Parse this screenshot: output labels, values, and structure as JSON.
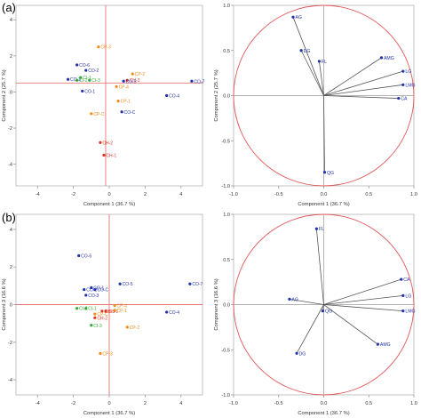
{
  "figure": {
    "panel_labels": [
      "(a)",
      "(b)"
    ]
  },
  "chart_data": [
    {
      "id": "score-a",
      "type": "scatter",
      "xlabel": "Component 1  (36.7 %)",
      "ylabel": "Component 2  (25.7 %)",
      "xlim": [
        -5.2,
        5.2
      ],
      "ylim": [
        -5.2,
        4.8
      ],
      "xticks": [
        -4,
        -2,
        0,
        2,
        4
      ],
      "yticks": [
        -4,
        -2,
        0,
        2,
        4
      ],
      "xtick_labels": [
        "-4",
        "-2",
        "0",
        "2",
        "4"
      ],
      "ytick_labels": [
        "-4",
        "-2",
        "0",
        "2",
        "4"
      ],
      "crosshair": {
        "x": -0.2,
        "y": 0.5
      },
      "crosshair_color": "#e57373",
      "points": [
        {
          "label": "CP-3",
          "x": -0.6,
          "y": 2.5,
          "color": "#f08c1a"
        },
        {
          "label": "CO-6",
          "x": -1.8,
          "y": 1.5,
          "color": "#2233aa"
        },
        {
          "label": "CO-2",
          "x": -1.3,
          "y": 1.2,
          "color": "#2233aa"
        },
        {
          "label": "CP-2",
          "x": 1.3,
          "y": 1.0,
          "color": "#f08c1a"
        },
        {
          "label": "CO-3",
          "x": -2.3,
          "y": 0.7,
          "color": "#2233aa"
        },
        {
          "label": "CI-1",
          "x": -1.6,
          "y": 0.8,
          "color": "#33aa33"
        },
        {
          "label": "CI-2",
          "x": -1.8,
          "y": 0.65,
          "color": "#33aa33"
        },
        {
          "label": "CI-3",
          "x": -1.1,
          "y": 0.65,
          "color": "#33aa33"
        },
        {
          "label": "CH-3",
          "x": 1.0,
          "y": 0.65,
          "color": "#dd3322"
        },
        {
          "label": "CO-5",
          "x": 0.8,
          "y": 0.6,
          "color": "#2233aa"
        },
        {
          "label": "CP-4",
          "x": 0.4,
          "y": 0.3,
          "color": "#f08c1a"
        },
        {
          "label": "CO-1",
          "x": -1.5,
          "y": 0.05,
          "color": "#2233aa"
        },
        {
          "label": "CO-7",
          "x": 4.6,
          "y": 0.6,
          "color": "#2233aa"
        },
        {
          "label": "CO-4",
          "x": 3.2,
          "y": -0.2,
          "color": "#2233aa"
        },
        {
          "label": "CP-1",
          "x": 0.5,
          "y": -0.5,
          "color": "#f08c1a"
        },
        {
          "label": "CO-C",
          "x": 0.7,
          "y": -1.1,
          "color": "#2233aa"
        },
        {
          "label": "CP-C",
          "x": -1.0,
          "y": -1.2,
          "color": "#f08c1a"
        },
        {
          "label": "CH-2",
          "x": -0.5,
          "y": -2.8,
          "color": "#dd3322"
        },
        {
          "label": "CH-1",
          "x": -0.3,
          "y": -3.5,
          "color": "#dd3322"
        }
      ]
    },
    {
      "id": "loading-a",
      "type": "scatter",
      "subtype": "loading-plot",
      "xlabel": "Component 1  (36.7 %)",
      "ylabel": "Component 2  (25.7 %)",
      "xlim": [
        -1.0,
        1.0
      ],
      "ylim": [
        -1.0,
        1.0
      ],
      "xticks": [
        -1.0,
        -0.5,
        0.0,
        0.5,
        1.0
      ],
      "yticks": [
        -1.0,
        -0.5,
        0.0,
        0.5,
        1.0
      ],
      "xtick_labels": [
        "-1.0",
        "-0.5",
        "0.0",
        "0.5",
        "1.0"
      ],
      "ytick_labels": [
        "-1.0",
        "-0.5",
        "0.0",
        "0.5",
        "1.0"
      ],
      "circle_radius": 1.0,
      "circle_color": "#e05555",
      "point_color": "#2233aa",
      "arrow_color": "#555555",
      "points": [
        {
          "label": "AG",
          "x": -0.34,
          "y": 0.87
        },
        {
          "label": "DG",
          "x": -0.25,
          "y": 0.5
        },
        {
          "label": "FL",
          "x": -0.05,
          "y": 0.38
        },
        {
          "label": "AMG",
          "x": 0.64,
          "y": 0.42
        },
        {
          "label": "LG",
          "x": 0.88,
          "y": 0.27
        },
        {
          "label": "LMG",
          "x": 0.88,
          "y": 0.12
        },
        {
          "label": "CA",
          "x": 0.83,
          "y": -0.03
        },
        {
          "label": "QG",
          "x": 0.01,
          "y": -0.85
        }
      ]
    },
    {
      "id": "score-b",
      "type": "scatter",
      "xlabel": "Component 1  (36.7 %)",
      "ylabel": "Component 3  (16.6 %)",
      "xlim": [
        -5.2,
        5.2
      ],
      "ylim": [
        -4.8,
        4.8
      ],
      "xticks": [
        -4,
        -2,
        0,
        2,
        4
      ],
      "yticks": [
        -4,
        -2,
        0,
        2,
        4
      ],
      "xtick_labels": [
        "-4",
        "-2",
        "0",
        "2",
        "4"
      ],
      "ytick_labels": [
        "-4",
        "-2",
        "0",
        "2",
        "4"
      ],
      "crosshair": {
        "x": 0.0,
        "y": 0.0
      },
      "crosshair_color": "#e57373",
      "points": [
        {
          "label": "CO-6",
          "x": -1.7,
          "y": 2.6,
          "color": "#2233aa"
        },
        {
          "label": "CO-5",
          "x": 0.6,
          "y": 1.1,
          "color": "#2233aa"
        },
        {
          "label": "CO-1",
          "x": -1.0,
          "y": 0.9,
          "color": "#2233aa"
        },
        {
          "label": "CO-2",
          "x": -1.4,
          "y": 0.8,
          "color": "#2233aa"
        },
        {
          "label": "CO-C",
          "x": -0.8,
          "y": 0.8,
          "color": "#2233aa"
        },
        {
          "label": "CO-3",
          "x": -1.3,
          "y": 0.5,
          "color": "#2233aa"
        },
        {
          "label": "CO-7",
          "x": 4.5,
          "y": 1.1,
          "color": "#2233aa"
        },
        {
          "label": "CP-4",
          "x": 0.3,
          "y": -0.05,
          "color": "#f08c1a"
        },
        {
          "label": "CI-2",
          "x": -1.8,
          "y": -0.2,
          "color": "#33aa33"
        },
        {
          "label": "CI-1",
          "x": -1.3,
          "y": -0.2,
          "color": "#33aa33"
        },
        {
          "label": "CH-3",
          "x": -0.4,
          "y": -0.35,
          "color": "#dd3322"
        },
        {
          "label": "CH-1",
          "x": -0.2,
          "y": -0.35,
          "color": "#dd3322"
        },
        {
          "label": "CP-1",
          "x": 0.3,
          "y": -0.3,
          "color": "#f08c1a"
        },
        {
          "label": "CP-C",
          "x": -0.8,
          "y": -0.5,
          "color": "#f08c1a"
        },
        {
          "label": "CH-2",
          "x": -0.8,
          "y": -0.7,
          "color": "#dd3322"
        },
        {
          "label": "CO-4",
          "x": 3.2,
          "y": -0.4,
          "color": "#2233aa"
        },
        {
          "label": "CI-3",
          "x": -1.0,
          "y": -1.1,
          "color": "#33aa33"
        },
        {
          "label": "CP-2",
          "x": 1.0,
          "y": -1.2,
          "color": "#f08c1a"
        },
        {
          "label": "CP-3",
          "x": -0.5,
          "y": -2.6,
          "color": "#f08c1a"
        }
      ]
    },
    {
      "id": "loading-b",
      "type": "scatter",
      "subtype": "loading-plot",
      "xlabel": "Component 1  (36.7 %)",
      "ylabel": "Component 3  (16.6 %)",
      "xlim": [
        -1.0,
        1.0
      ],
      "ylim": [
        -1.0,
        1.0
      ],
      "xticks": [
        -1.0,
        -0.5,
        0.0,
        0.5,
        1.0
      ],
      "yticks": [
        -1.0,
        -0.5,
        0.0,
        0.5,
        1.0
      ],
      "xtick_labels": [
        "-1.0",
        "-0.5",
        "0.0",
        "0.5",
        "1.0"
      ],
      "ytick_labels": [
        "-1.0",
        "-0.5",
        "0.0",
        "0.5",
        "1.0"
      ],
      "circle_radius": 1.0,
      "circle_color": "#e05555",
      "point_color": "#2233aa",
      "arrow_color": "#555555",
      "points": [
        {
          "label": "FL",
          "x": -0.08,
          "y": 0.84
        },
        {
          "label": "CA",
          "x": 0.86,
          "y": 0.28
        },
        {
          "label": "LG",
          "x": 0.88,
          "y": 0.1
        },
        {
          "label": "AG",
          "x": -0.38,
          "y": 0.06
        },
        {
          "label": "QG",
          "x": -0.01,
          "y": -0.07
        },
        {
          "label": "LMG",
          "x": 0.88,
          "y": -0.07
        },
        {
          "label": "AMG",
          "x": 0.6,
          "y": -0.44
        },
        {
          "label": "DG",
          "x": -0.3,
          "y": -0.54
        }
      ]
    }
  ]
}
